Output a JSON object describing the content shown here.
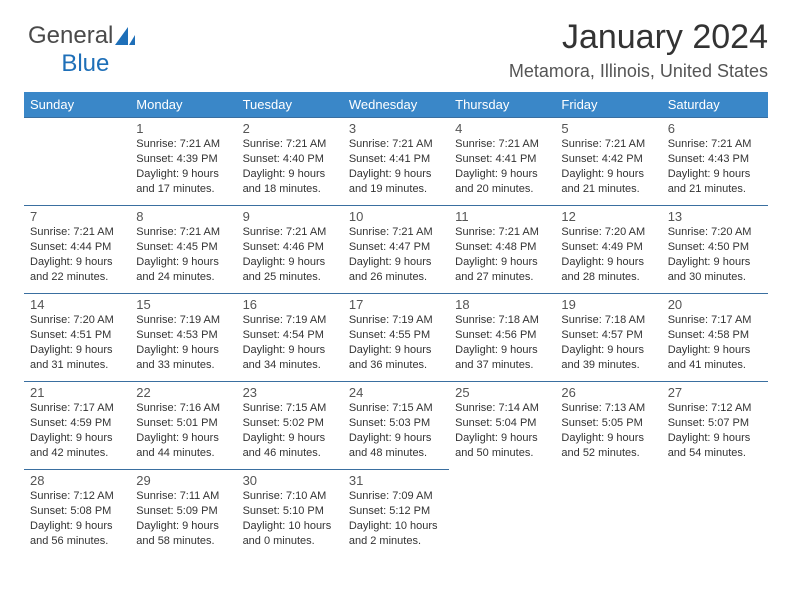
{
  "logo": {
    "text1": "General",
    "text2": "Blue"
  },
  "title": "January 2024",
  "location": "Metamora, Illinois, United States",
  "header_bg": "#3a87c8",
  "header_fg": "#ffffff",
  "border_color": "#3a6fa0",
  "day_headers": [
    "Sunday",
    "Monday",
    "Tuesday",
    "Wednesday",
    "Thursday",
    "Friday",
    "Saturday"
  ],
  "weeks": [
    [
      null,
      {
        "d": "1",
        "sr": "7:21 AM",
        "ss": "4:39 PM",
        "dl": "9 hours and 17 minutes."
      },
      {
        "d": "2",
        "sr": "7:21 AM",
        "ss": "4:40 PM",
        "dl": "9 hours and 18 minutes."
      },
      {
        "d": "3",
        "sr": "7:21 AM",
        "ss": "4:41 PM",
        "dl": "9 hours and 19 minutes."
      },
      {
        "d": "4",
        "sr": "7:21 AM",
        "ss": "4:41 PM",
        "dl": "9 hours and 20 minutes."
      },
      {
        "d": "5",
        "sr": "7:21 AM",
        "ss": "4:42 PM",
        "dl": "9 hours and 21 minutes."
      },
      {
        "d": "6",
        "sr": "7:21 AM",
        "ss": "4:43 PM",
        "dl": "9 hours and 21 minutes."
      }
    ],
    [
      {
        "d": "7",
        "sr": "7:21 AM",
        "ss": "4:44 PM",
        "dl": "9 hours and 22 minutes."
      },
      {
        "d": "8",
        "sr": "7:21 AM",
        "ss": "4:45 PM",
        "dl": "9 hours and 24 minutes."
      },
      {
        "d": "9",
        "sr": "7:21 AM",
        "ss": "4:46 PM",
        "dl": "9 hours and 25 minutes."
      },
      {
        "d": "10",
        "sr": "7:21 AM",
        "ss": "4:47 PM",
        "dl": "9 hours and 26 minutes."
      },
      {
        "d": "11",
        "sr": "7:21 AM",
        "ss": "4:48 PM",
        "dl": "9 hours and 27 minutes."
      },
      {
        "d": "12",
        "sr": "7:20 AM",
        "ss": "4:49 PM",
        "dl": "9 hours and 28 minutes."
      },
      {
        "d": "13",
        "sr": "7:20 AM",
        "ss": "4:50 PM",
        "dl": "9 hours and 30 minutes."
      }
    ],
    [
      {
        "d": "14",
        "sr": "7:20 AM",
        "ss": "4:51 PM",
        "dl": "9 hours and 31 minutes."
      },
      {
        "d": "15",
        "sr": "7:19 AM",
        "ss": "4:53 PM",
        "dl": "9 hours and 33 minutes."
      },
      {
        "d": "16",
        "sr": "7:19 AM",
        "ss": "4:54 PM",
        "dl": "9 hours and 34 minutes."
      },
      {
        "d": "17",
        "sr": "7:19 AM",
        "ss": "4:55 PM",
        "dl": "9 hours and 36 minutes."
      },
      {
        "d": "18",
        "sr": "7:18 AM",
        "ss": "4:56 PM",
        "dl": "9 hours and 37 minutes."
      },
      {
        "d": "19",
        "sr": "7:18 AM",
        "ss": "4:57 PM",
        "dl": "9 hours and 39 minutes."
      },
      {
        "d": "20",
        "sr": "7:17 AM",
        "ss": "4:58 PM",
        "dl": "9 hours and 41 minutes."
      }
    ],
    [
      {
        "d": "21",
        "sr": "7:17 AM",
        "ss": "4:59 PM",
        "dl": "9 hours and 42 minutes."
      },
      {
        "d": "22",
        "sr": "7:16 AM",
        "ss": "5:01 PM",
        "dl": "9 hours and 44 minutes."
      },
      {
        "d": "23",
        "sr": "7:15 AM",
        "ss": "5:02 PM",
        "dl": "9 hours and 46 minutes."
      },
      {
        "d": "24",
        "sr": "7:15 AM",
        "ss": "5:03 PM",
        "dl": "9 hours and 48 minutes."
      },
      {
        "d": "25",
        "sr": "7:14 AM",
        "ss": "5:04 PM",
        "dl": "9 hours and 50 minutes."
      },
      {
        "d": "26",
        "sr": "7:13 AM",
        "ss": "5:05 PM",
        "dl": "9 hours and 52 minutes."
      },
      {
        "d": "27",
        "sr": "7:12 AM",
        "ss": "5:07 PM",
        "dl": "9 hours and 54 minutes."
      }
    ],
    [
      {
        "d": "28",
        "sr": "7:12 AM",
        "ss": "5:08 PM",
        "dl": "9 hours and 56 minutes."
      },
      {
        "d": "29",
        "sr": "7:11 AM",
        "ss": "5:09 PM",
        "dl": "9 hours and 58 minutes."
      },
      {
        "d": "30",
        "sr": "7:10 AM",
        "ss": "5:10 PM",
        "dl": "10 hours and 0 minutes."
      },
      {
        "d": "31",
        "sr": "7:09 AM",
        "ss": "5:12 PM",
        "dl": "10 hours and 2 minutes."
      },
      null,
      null,
      null
    ]
  ],
  "labels": {
    "sunrise": "Sunrise:",
    "sunset": "Sunset:",
    "daylight": "Daylight:"
  }
}
